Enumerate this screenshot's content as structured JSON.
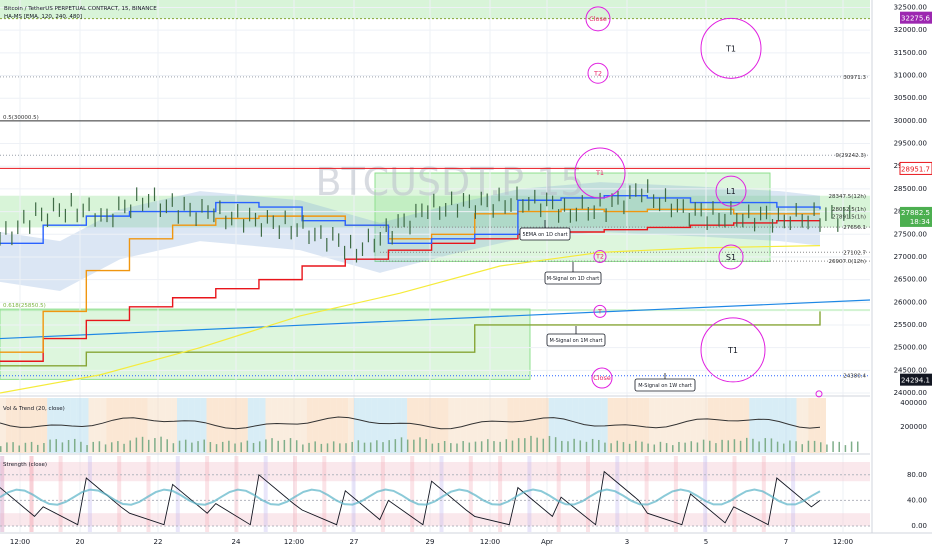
{
  "header": {
    "symbol_line": "Bitcoin / TetherUS PERPETUAL CONTRACT, 15, BINANCE",
    "indicator_line": "HA-MS [EMA, 120, 240, 480]"
  },
  "watermark": "BTCUSDT.P 15",
  "colors": {
    "grid": "#eef1f6",
    "axis_text": "#131722",
    "green_zone": "#8fe08f",
    "magenta": "#e020e0",
    "red": "#e8151b",
    "orange": "#f0960f",
    "blue": "#2962ff",
    "olive": "#86a536",
    "yellow": "#f5eb3b",
    "candle": "#3f6b45",
    "purple_tag": "#9c27b0",
    "green_tag": "#4caf50"
  },
  "chart_data": [
    {
      "type": "line",
      "title": "Bitcoin / TetherUS PERPETUAL CONTRACT, 15, BINANCE",
      "x_ticks": [
        "12:00",
        "20",
        "22",
        "24",
        "12:00",
        "27",
        "29",
        "12:00",
        "Apr",
        "3",
        "5",
        "7",
        "12:00"
      ],
      "y_ticks": [
        32500,
        32000,
        31500,
        31000,
        30500,
        30000,
        29500,
        29000,
        28500,
        28000,
        27500,
        27000,
        26500,
        26000,
        25500,
        25000,
        24500,
        24000
      ],
      "ylim": [
        23900,
        32550
      ],
      "grid": true,
      "current_price": {
        "value": "27882.5",
        "countdown": "18:34"
      },
      "price_tags": [
        {
          "value": "32275.6",
          "style": "purple"
        },
        {
          "value": "28951.7",
          "style": "red"
        },
        {
          "value": "24294.1",
          "style": "dark"
        }
      ],
      "level_labels": [
        {
          "value": 30971.3,
          "text": "30971.3"
        },
        {
          "value": 29242.3,
          "text": "0(29242.3)"
        },
        {
          "value": 28347.5,
          "text": "28347.5(12h)"
        },
        {
          "value": 28052.5,
          "text": "28052.5(1h)"
        },
        {
          "value": 27891.5,
          "text": "27891.5(1h)"
        },
        {
          "value": 27656.1,
          "text": "27656.1"
        },
        {
          "value": 27102.7,
          "text": "27102.7"
        },
        {
          "value": 26907.0,
          "text": "26907.0(12h)"
        },
        {
          "value": 24380.4,
          "text": "24380.4"
        }
      ],
      "left_labels": [
        {
          "value": 30000.5,
          "text": "0.5(30000.5)"
        },
        {
          "value": 25850.5,
          "text": "0.618(25850.5)"
        }
      ],
      "circle_markers": [
        {
          "label": "Close",
          "value": 32250
        },
        {
          "label": "T2",
          "value": 31050
        },
        {
          "label": "T1",
          "value": 28850
        },
        {
          "label": "T1",
          "value": 28850
        },
        {
          "label": "T2",
          "value": 27010
        },
        {
          "label": "T",
          "value": 25800
        },
        {
          "label": "Close",
          "value": 24330
        }
      ],
      "big_circles": [
        {
          "label": "T1",
          "value": 31600
        },
        {
          "label": "L1",
          "value": 28450
        },
        {
          "label": "S1",
          "value": 27000
        },
        {
          "label": "T1",
          "value": 24950
        }
      ],
      "callouts": [
        {
          "text": "5EMA on 1D chart"
        },
        {
          "text": "M-Signal on 1D chart"
        },
        {
          "text": "M-Signal on 1M chart"
        },
        {
          "text": "M-Signal on 1W chart"
        }
      ],
      "series": [
        {
          "name": "",
          "color": "#e8151b",
          "values": [
            24700,
            25200,
            25600,
            25900,
            26100,
            26300,
            26500,
            26800,
            26950,
            27150,
            27300,
            27400,
            27500,
            27550,
            27600,
            27650,
            27700,
            27750,
            27800,
            27800
          ]
        },
        {
          "name": "",
          "color": "#f0960f",
          "values": [
            24900,
            25800,
            26700,
            27400,
            27700,
            27850,
            27900,
            27900,
            27700,
            27400,
            27500,
            27950,
            28000,
            28050,
            28000,
            28050,
            28050,
            27950,
            27950,
            27950
          ]
        },
        {
          "name": "",
          "color": "#2962ff",
          "values": [
            27300,
            27700,
            27900,
            28000,
            28000,
            28200,
            28100,
            27800,
            27700,
            27300,
            27400,
            27500,
            28250,
            28300,
            28350,
            28300,
            28200,
            28200,
            28100,
            28050
          ]
        },
        {
          "name": "",
          "color": "#86a536",
          "values": [
            24600,
            24600,
            24900,
            24900,
            24900,
            24900,
            24900,
            24900,
            24900,
            24900,
            24900,
            25500,
            25500,
            25500,
            25500,
            25500,
            25500,
            25500,
            25500,
            25800
          ]
        }
      ],
      "candles": [
        27400,
        27900,
        28100,
        27900,
        28300,
        28050,
        27950,
        27800,
        27700,
        27500,
        27150,
        27600,
        28050,
        28150,
        28200,
        28250,
        28000,
        28100,
        28450,
        28050,
        27900,
        27900,
        27850,
        27880
      ]
    },
    {
      "type": "bar",
      "title": "Vol & Trend (20, close)",
      "y_ticks": [
        "400000",
        "200000"
      ],
      "values": [
        80,
        120,
        90,
        150,
        110,
        95,
        130,
        85,
        100,
        140,
        90,
        115,
        160,
        120,
        95,
        80,
        110,
        135,
        100,
        90
      ]
    },
    {
      "type": "line",
      "title": "Strength (close)",
      "y_ticks": [
        "80.00",
        "40.00",
        "0.00"
      ],
      "ylim": [
        0,
        100
      ],
      "values": [
        60,
        30,
        75,
        20,
        65,
        35,
        80,
        25,
        55,
        40,
        70,
        15,
        60,
        45,
        85,
        20,
        50,
        30,
        75,
        40
      ]
    }
  ]
}
